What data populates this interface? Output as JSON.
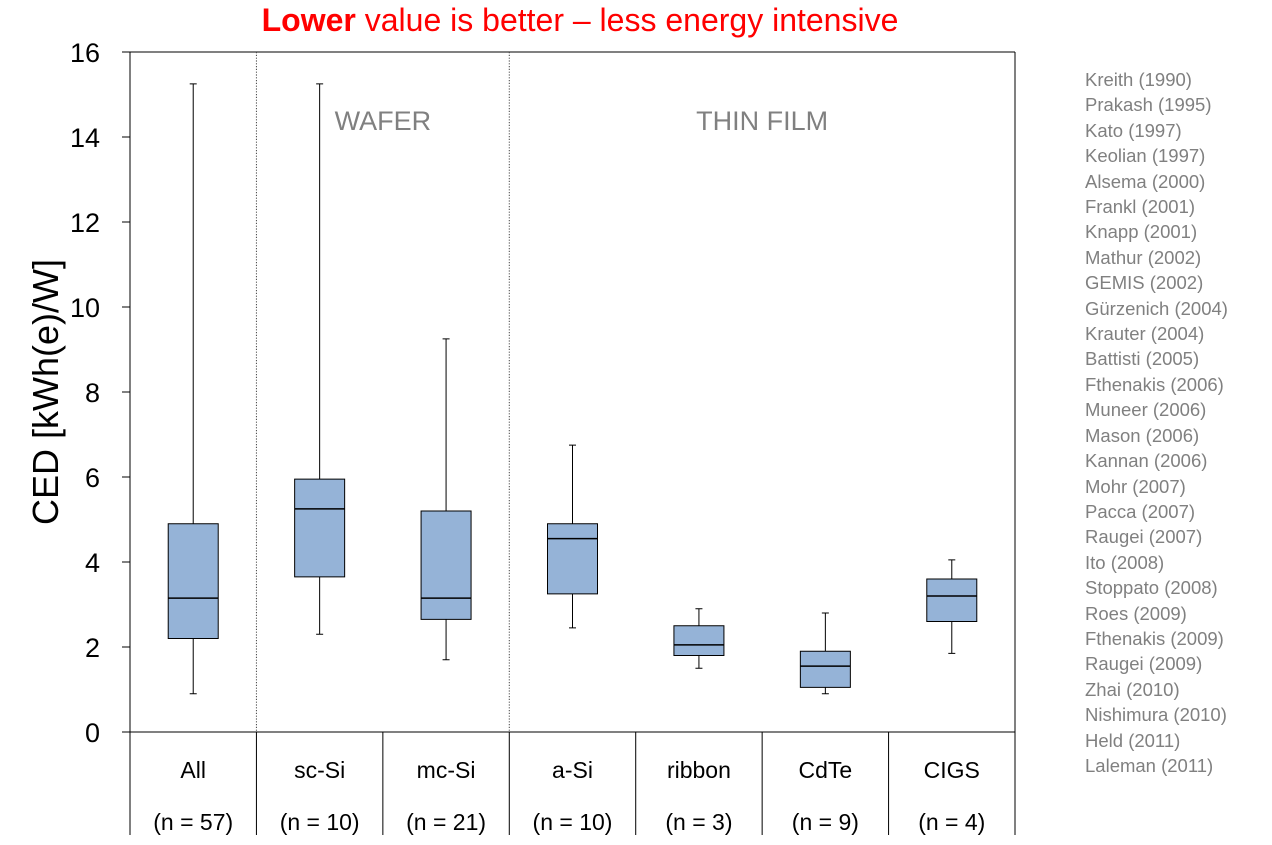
{
  "title": {
    "highlight": "Lower",
    "rest": " value is better – less energy intensive",
    "color": "#ff0000"
  },
  "chart_data": {
    "type": "box",
    "ylabel": "CED [kWh(e)/W]",
    "ylim": [
      0,
      16
    ],
    "yticks": [
      0,
      2,
      4,
      6,
      8,
      10,
      12,
      14,
      16
    ],
    "grid": false,
    "box_color": "#95b3d7",
    "groups": [
      {
        "label": "WAFER",
        "categories": [
          "sc-Si",
          "mc-Si"
        ]
      },
      {
        "label": "THIN FILM",
        "categories": [
          "a-Si",
          "ribbon",
          "CdTe",
          "CIGS"
        ]
      }
    ],
    "series": [
      {
        "category": "All",
        "n_label": "(n = 57)",
        "min": 0.9,
        "q1": 2.2,
        "median": 3.15,
        "q3": 4.9,
        "max": 15.25
      },
      {
        "category": "sc-Si",
        "n_label": "(n = 10)",
        "min": 2.3,
        "q1": 3.65,
        "median": 5.25,
        "q3": 5.95,
        "max": 15.25
      },
      {
        "category": "mc-Si",
        "n_label": "(n = 21)",
        "min": 1.7,
        "q1": 2.65,
        "median": 3.15,
        "q3": 5.2,
        "max": 9.25
      },
      {
        "category": "a-Si",
        "n_label": "(n = 10)",
        "min": 2.45,
        "q1": 3.25,
        "median": 4.55,
        "q3": 4.9,
        "max": 6.75
      },
      {
        "category": "ribbon",
        "n_label": "(n = 3)",
        "min": 1.5,
        "q1": 1.8,
        "median": 2.05,
        "q3": 2.5,
        "max": 2.9
      },
      {
        "category": "CdTe",
        "n_label": "(n = 9)",
        "min": 0.9,
        "q1": 1.05,
        "median": 1.55,
        "q3": 1.9,
        "max": 2.8
      },
      {
        "category": "CIGS",
        "n_label": "(n = 4)",
        "min": 1.85,
        "q1": 2.6,
        "median": 3.2,
        "q3": 3.6,
        "max": 4.05
      }
    ]
  },
  "references": [
    "Kreith (1990)",
    "Prakash (1995)",
    "Kato (1997)",
    "Keolian (1997)",
    "Alsema (2000)",
    "Frankl (2001)",
    "Knapp (2001)",
    "Mathur (2002)",
    "GEMIS (2002)",
    "Gürzenich (2004)",
    "Krauter (2004)",
    "Battisti (2005)",
    "Fthenakis (2006)",
    "Muneer (2006)",
    "Mason (2006)",
    "Kannan (2006)",
    "Mohr (2007)",
    "Pacca (2007)",
    "Raugei (2007)",
    "Ito (2008)",
    "Stoppato (2008)",
    "Roes (2009)",
    "Fthenakis (2009)",
    "Raugei (2009)",
    "Zhai (2010)",
    "Nishimura (2010)",
    "Held (2011)",
    "Laleman (2011)"
  ]
}
